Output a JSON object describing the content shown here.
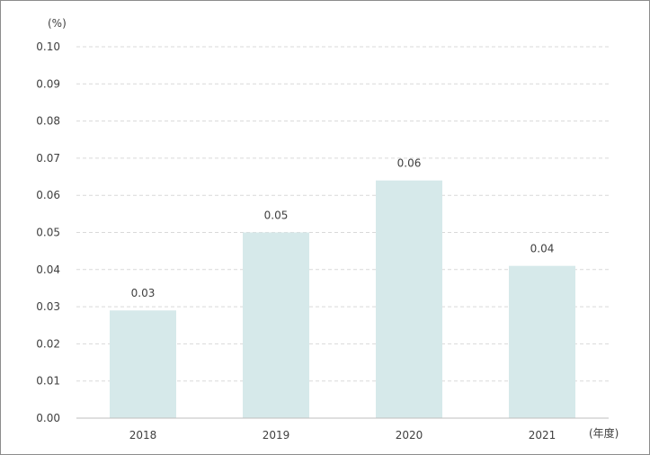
{
  "chart_data": {
    "type": "bar",
    "y_unit": "(%)",
    "x_unit": "(年度)",
    "categories": [
      "2018",
      "2019",
      "2020",
      "2021"
    ],
    "values": [
      0.029,
      0.05,
      0.064,
      0.041
    ],
    "data_labels": [
      "0.03",
      "0.05",
      "0.06",
      "0.04"
    ],
    "y_ticks": [
      "0.00",
      "0.01",
      "0.02",
      "0.03",
      "0.04",
      "0.05",
      "0.06",
      "0.07",
      "0.08",
      "0.09",
      "0.10"
    ],
    "ylim": [
      0,
      0.1
    ],
    "grid": "horizontal-dashed",
    "legend": "none",
    "bar_color": "#d6e9ea",
    "grid_color": "#d9d9d9",
    "axis_color": "#bfbfbf"
  }
}
